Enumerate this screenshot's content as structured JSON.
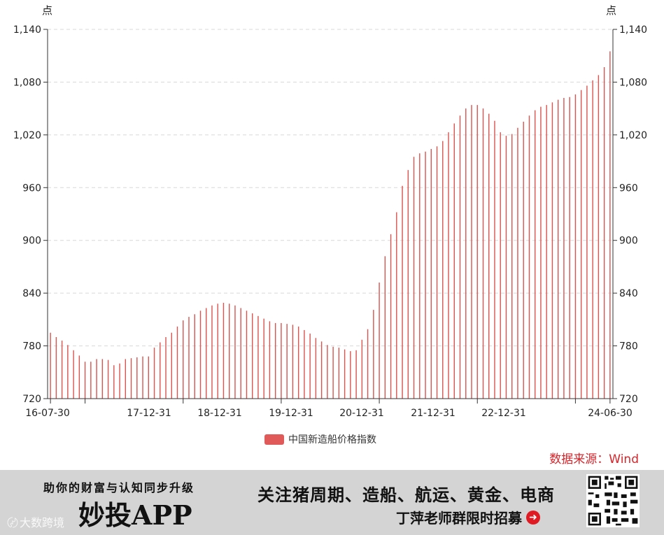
{
  "chart_data": {
    "type": "bar",
    "unit_left": "点",
    "unit_right": "点",
    "y_ticks": [
      720,
      780,
      840,
      900,
      960,
      1020,
      1080,
      1140
    ],
    "y_tick_labels": [
      "720",
      "780",
      "840",
      "900",
      "960",
      "1,020",
      "1,080",
      "1,140"
    ],
    "ylim": [
      720,
      1140
    ],
    "x_tick_labels": [
      "16-07-30",
      "17-12-31",
      "18-12-31",
      "19-12-31",
      "20-12-31",
      "21-12-31",
      "22-12-31",
      "24-06-30"
    ],
    "series": [
      {
        "name": "中国新造船价格指数",
        "color": "#d9534f",
        "values": [
          795,
          790,
          786,
          781,
          775,
          769,
          762,
          762,
          765,
          765,
          764,
          758,
          760,
          765,
          766,
          767,
          768,
          768,
          778,
          784,
          790,
          795,
          802,
          809,
          813,
          816,
          820,
          823,
          826,
          828,
          829,
          828,
          826,
          823,
          820,
          817,
          814,
          811,
          808,
          806,
          806,
          805,
          804,
          802,
          798,
          794,
          789,
          785,
          781,
          779,
          778,
          776,
          774,
          775,
          787,
          799,
          821,
          852,
          882,
          907,
          932,
          962,
          980,
          995,
          999,
          1001,
          1004,
          1007,
          1013,
          1023,
          1033,
          1042,
          1050,
          1054,
          1054,
          1050,
          1044,
          1036,
          1023,
          1019,
          1021,
          1028,
          1035,
          1042,
          1048,
          1052,
          1054,
          1057,
          1060,
          1062,
          1063,
          1066,
          1071,
          1076,
          1082,
          1088,
          1097,
          1115
        ]
      }
    ],
    "grid": "horizontal-dashed",
    "legend_position": "bottom-center"
  },
  "legend": {
    "label": "中国新造船价格指数",
    "color": "#e05a5a"
  },
  "source": {
    "text": "数据来源：Wind",
    "color": "#d6252b"
  },
  "banner": {
    "tagline": "助你的财富与认知同步升级",
    "app_name": "妙投APP",
    "follow_text": "关注猪周期、造船、航运、黄金、电商",
    "teacher_text": "丁萍老师群限时招募",
    "arrow_icon": "arrow-right-circle-icon",
    "qr_icon": "qr-code-icon",
    "watermark": "大数跨境"
  }
}
